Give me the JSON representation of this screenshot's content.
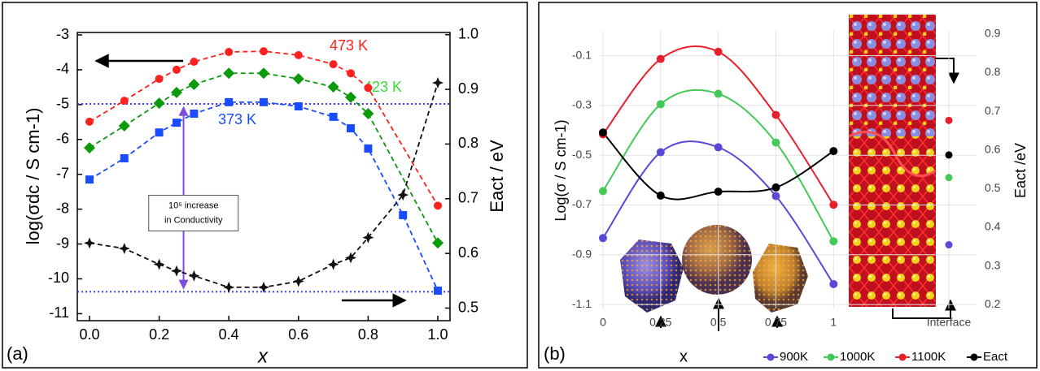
{
  "chart_data": [
    {
      "type": "line",
      "label": "(a)",
      "xlabel": "x",
      "ylabel": "log(σdc / S cm-1)",
      "y2label": "Eact / eV",
      "xlim": [
        -0.035,
        1.035
      ],
      "xticks": [
        {
          "value": 0,
          "label": "0.0"
        },
        0.2,
        0.4,
        0.6,
        0.8,
        {
          "value": 1,
          "label": "1.0"
        }
      ],
      "ylim": [
        -11.2,
        -2.93
      ],
      "yticks": [
        -11,
        -10,
        -9,
        -8,
        -7,
        -6,
        -5,
        -4,
        -3
      ],
      "y2lim": [
        0.477,
        1.004
      ],
      "y2ticks": [
        0.5,
        0.6,
        0.7,
        0.8,
        0.9,
        {
          "value": 1,
          "label": "1.0"
        }
      ],
      "reference_lines": [
        -4.98,
        -10.37
      ],
      "reference_color": "#3a3aff",
      "annotation": [
        "10⁵ increase",
        "in Conductivity"
      ],
      "series": [
        {
          "name": "473 K",
          "color": "#ff2020",
          "marker": "circle",
          "dash": true,
          "x": [
            0,
            0.1,
            0.2,
            0.25,
            0.3,
            0.4,
            0.5,
            0.6,
            0.7,
            0.75,
            0.8,
            1.0
          ],
          "values": [
            -5.49,
            -4.89,
            -4.26,
            -4.0,
            -3.77,
            -3.49,
            -3.47,
            -3.58,
            -3.84,
            -4.1,
            -4.52,
            -7.9
          ]
        },
        {
          "name": "423 K",
          "color": "#0a9a0a",
          "label_color": "#33dd33",
          "marker": "diamond",
          "dash": true,
          "x": [
            0,
            0.1,
            0.2,
            0.25,
            0.3,
            0.4,
            0.5,
            0.6,
            0.7,
            0.75,
            0.8,
            1.0
          ],
          "values": [
            -6.24,
            -5.61,
            -4.96,
            -4.65,
            -4.42,
            -4.1,
            -4.1,
            -4.26,
            -4.49,
            -4.79,
            -5.26,
            -8.97
          ]
        },
        {
          "name": "373 K",
          "color": "#1a4cff",
          "marker": "square",
          "dash": true,
          "x": [
            0,
            0.1,
            0.2,
            0.25,
            0.3,
            0.4,
            0.5,
            0.6,
            0.7,
            0.75,
            0.8,
            0.9,
            1.0
          ],
          "values": [
            -7.15,
            -6.54,
            -5.8,
            -5.52,
            -5.26,
            -4.93,
            -4.93,
            -5.05,
            -5.35,
            -5.68,
            -6.26,
            -8.17,
            -10.34
          ]
        },
        {
          "color": "#111111",
          "marker": "star",
          "dash": true,
          "axis": "y2",
          "x": [
            0,
            0.1,
            0.2,
            0.25,
            0.3,
            0.4,
            0.5,
            0.6,
            0.7,
            0.75,
            0.8,
            0.9,
            1.0
          ],
          "values": [
            0.619,
            0.609,
            0.58,
            0.568,
            0.559,
            0.538,
            0.538,
            0.549,
            0.58,
            0.592,
            0.629,
            0.707,
            0.912
          ]
        }
      ]
    },
    {
      "type": "line",
      "smooth": true,
      "grid": true,
      "legend": "bottom",
      "label": "(b)",
      "xlabel": "x",
      "ylabel": "Log(σ / S cm-1)",
      "y2label": "Eact /eV",
      "xlim": [
        -0.014,
        1.62
      ],
      "xticks": [
        0,
        0.25,
        0.5,
        0.75,
        1,
        {
          "value": 1.5,
          "label": "Interface"
        }
      ],
      "ylim": [
        -1.116,
        0
      ],
      "yticks": [
        -1.1,
        -0.9,
        -0.7,
        -0.5,
        -0.3,
        -0.1
      ],
      "y2lim": [
        0.19,
        0.908
      ],
      "y2ticks": [
        0.2,
        0.3,
        0.4,
        0.5,
        0.6,
        0.7,
        0.8,
        0.9
      ],
      "x": [
        0,
        0.25,
        0.5,
        0.75,
        1
      ],
      "interface_x": 1.5,
      "series": [
        {
          "name": "900K",
          "color": "#5a48d8",
          "values": [
            -0.833,
            -0.488,
            -0.468,
            -0.664,
            -1.018
          ],
          "interface_value": -0.86
        },
        {
          "name": "1000K",
          "color": "#45c85a",
          "values": [
            -0.644,
            -0.295,
            -0.253,
            -0.449,
            -0.846
          ],
          "interface_value": -0.59
        },
        {
          "name": "1100K",
          "color": "#e8202a",
          "values": [
            -0.416,
            -0.113,
            -0.084,
            -0.338,
            -0.699
          ],
          "interface_value": -0.36
        },
        {
          "name": "Eact",
          "color": "#000000",
          "axis": "y2",
          "values": [
            0.645,
            0.482,
            0.492,
            0.503,
            0.597
          ],
          "interface_value": 0.587
        }
      ]
    }
  ]
}
